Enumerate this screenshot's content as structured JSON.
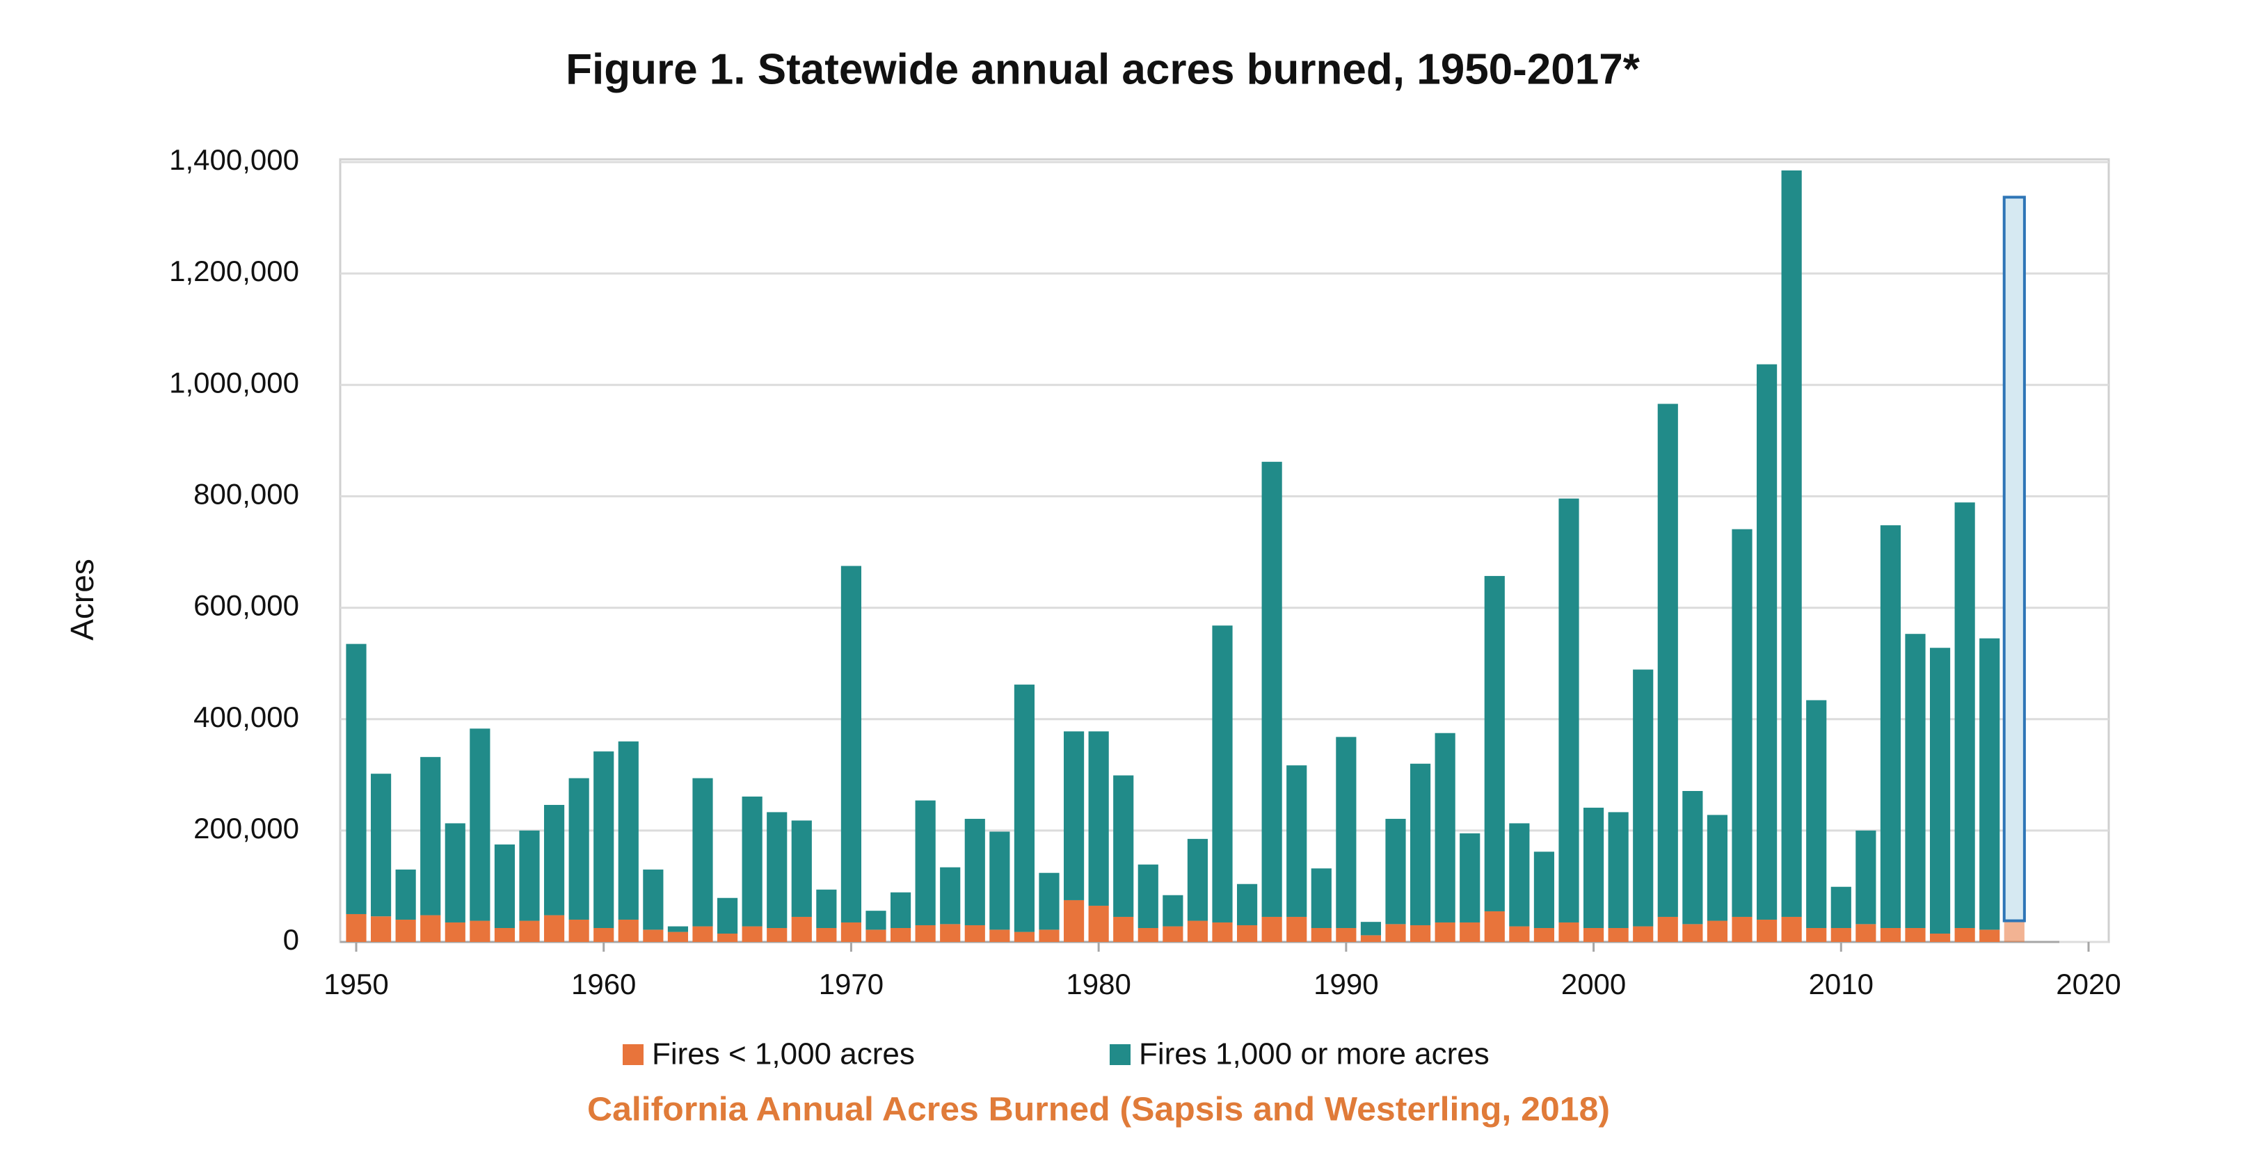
{
  "chart_data": {
    "type": "stacked_bar",
    "title": "Figure 1. Statewide annual acres burned, 1950-2017*",
    "y_label": "Acres",
    "caption": "California Annual Acres Burned (Sapsis and Westerling, 2018)",
    "x": [
      1950,
      1951,
      1952,
      1953,
      1954,
      1955,
      1956,
      1957,
      1958,
      1959,
      1960,
      1961,
      1962,
      1963,
      1964,
      1965,
      1966,
      1967,
      1968,
      1969,
      1970,
      1971,
      1972,
      1973,
      1974,
      1975,
      1976,
      1977,
      1978,
      1979,
      1980,
      1981,
      1982,
      1983,
      1984,
      1985,
      1986,
      1987,
      1988,
      1989,
      1990,
      1991,
      1992,
      1993,
      1994,
      1995,
      1996,
      1997,
      1998,
      1999,
      2000,
      2001,
      2002,
      2003,
      2004,
      2005,
      2006,
      2007,
      2008,
      2009,
      2010,
      2011,
      2012,
      2013,
      2014,
      2015,
      2016,
      2017
    ],
    "series": [
      {
        "name": "Fires < 1,000 acres",
        "color": "#e8743b",
        "values": [
          50000,
          46000,
          40000,
          48000,
          35000,
          38000,
          25000,
          38000,
          48000,
          40000,
          25000,
          40000,
          22000,
          18000,
          28000,
          15000,
          28000,
          25000,
          45000,
          25000,
          35000,
          22000,
          25000,
          30000,
          32000,
          30000,
          22000,
          18000,
          22000,
          75000,
          65000,
          45000,
          25000,
          28000,
          38000,
          35000,
          30000,
          45000,
          45000,
          25000,
          25000,
          12000,
          32000,
          30000,
          35000,
          35000,
          55000,
          28000,
          25000,
          35000,
          25000,
          25000,
          28000,
          45000,
          32000,
          38000,
          45000,
          40000,
          45000,
          25000,
          25000,
          32000,
          25000,
          25000,
          15000,
          25000,
          22000,
          38000
        ]
      },
      {
        "name": "Fires 1,000 or more acres",
        "color": "#218b89",
        "values": [
          485000,
          256000,
          90000,
          284000,
          178000,
          345000,
          150000,
          162000,
          198000,
          254000,
          317000,
          320000,
          108000,
          10000,
          266000,
          64000,
          233000,
          208000,
          173000,
          69000,
          640000,
          34000,
          64000,
          224000,
          102000,
          191000,
          176000,
          444000,
          102000,
          303000,
          313000,
          254000,
          114000,
          56000,
          147000,
          533000,
          74000,
          817000,
          272000,
          107000,
          343000,
          24000,
          189000,
          290000,
          340000,
          160000,
          602000,
          185000,
          137000,
          761000,
          216000,
          208000,
          461000,
          921000,
          239000,
          190000,
          696000,
          997000,
          1340000,
          409000,
          74000,
          168000,
          723000,
          528000,
          513000,
          764000,
          523000,
          1299000
        ]
      }
    ],
    "highlight_x": 2017,
    "highlight_fill": "#d6e9f2",
    "highlight_edge": "#2e75b6",
    "xlim": [
      1950,
      2020
    ],
    "xticks": [
      1950,
      1960,
      1970,
      1980,
      1990,
      2000,
      2010,
      2020
    ],
    "ylim": [
      0,
      1400000
    ],
    "yticks": [
      0,
      {
        "value": 200000,
        "label": "200,000"
      },
      {
        "value": 400000,
        "label": "400,000"
      },
      {
        "value": 600000,
        "label": "600,000"
      },
      {
        "value": 800000,
        "label": "800,000"
      },
      {
        "value": 1000000,
        "label": "1,000,000"
      },
      {
        "value": 1200000,
        "label": "1,200,000"
      },
      {
        "value": 1400000,
        "label": "1,400,000"
      }
    ],
    "grid": true,
    "legend": "bottom"
  }
}
